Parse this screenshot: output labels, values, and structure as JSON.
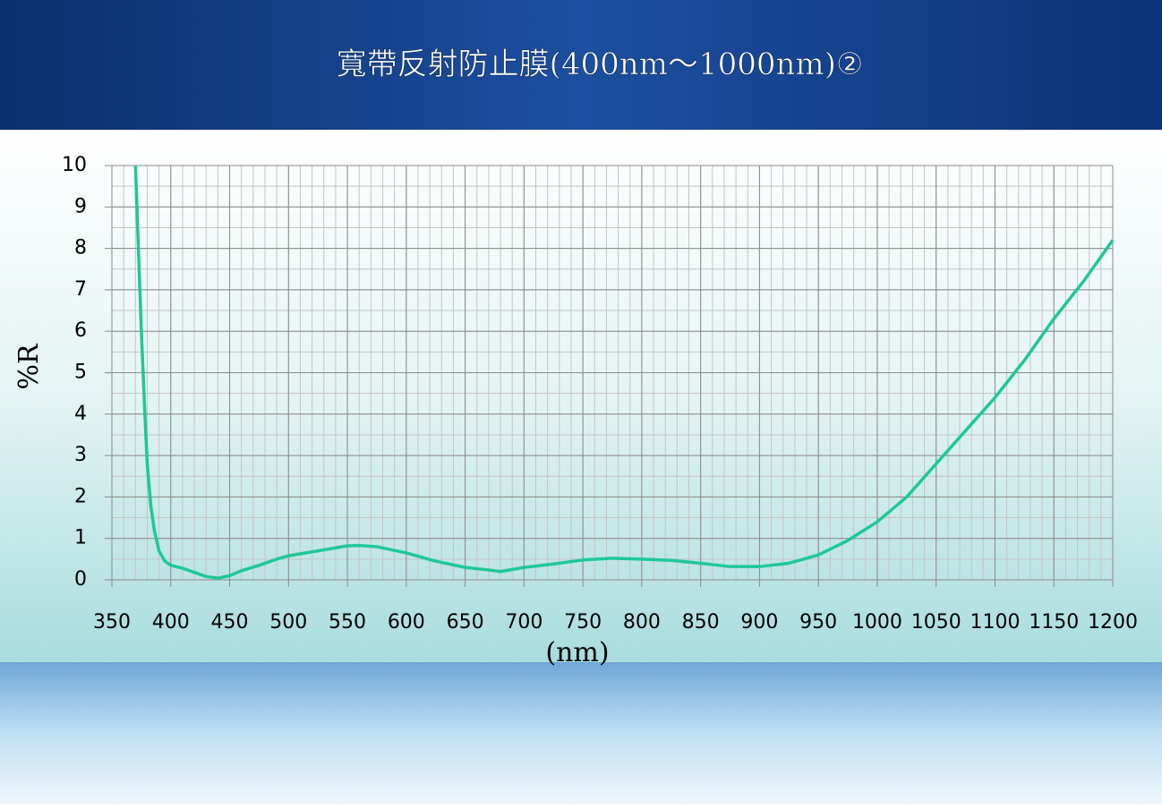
{
  "chart_data": {
    "type": "line",
    "title": "寬帶反射防止膜(400nm～1000nm)②",
    "x_label": "(nm)",
    "y_label": "%R",
    "series": [
      {
        "color": "#1dc897",
        "x": [
          370,
          375,
          378,
          380,
          383,
          386,
          390,
          395,
          400,
          410,
          420,
          430,
          440,
          450,
          460,
          475,
          490,
          500,
          525,
          550,
          560,
          575,
          600,
          625,
          650,
          675,
          680,
          700,
          725,
          750,
          775,
          800,
          825,
          850,
          875,
          900,
          925,
          950,
          975,
          1000,
          1025,
          1050,
          1075,
          1100,
          1125,
          1150,
          1175,
          1200
        ],
        "values": [
          10,
          6,
          4,
          2.8,
          1.8,
          1.2,
          0.7,
          0.45,
          0.35,
          0.28,
          0.18,
          0.08,
          0.04,
          0.1,
          0.22,
          0.35,
          0.5,
          0.58,
          0.7,
          0.82,
          0.83,
          0.8,
          0.65,
          0.45,
          0.3,
          0.22,
          0.2,
          0.3,
          0.38,
          0.48,
          0.52,
          0.5,
          0.47,
          0.4,
          0.32,
          0.32,
          0.4,
          0.6,
          0.95,
          1.4,
          2.0,
          2.8,
          3.6,
          4.4,
          5.3,
          6.3,
          7.2,
          8.2
        ]
      }
    ],
    "xlim": [
      350,
      1200
    ],
    "xticks": [
      350,
      400,
      450,
      500,
      550,
      600,
      650,
      700,
      750,
      800,
      850,
      900,
      950,
      1000,
      1050,
      1100,
      1150,
      1200
    ],
    "ylim": [
      0,
      10
    ],
    "yticks": [
      0,
      1,
      2,
      3,
      4,
      5,
      6,
      7,
      8,
      9,
      10
    ],
    "grid": true,
    "minor_grid": {
      "x": 10,
      "y": 0.5
    }
  }
}
